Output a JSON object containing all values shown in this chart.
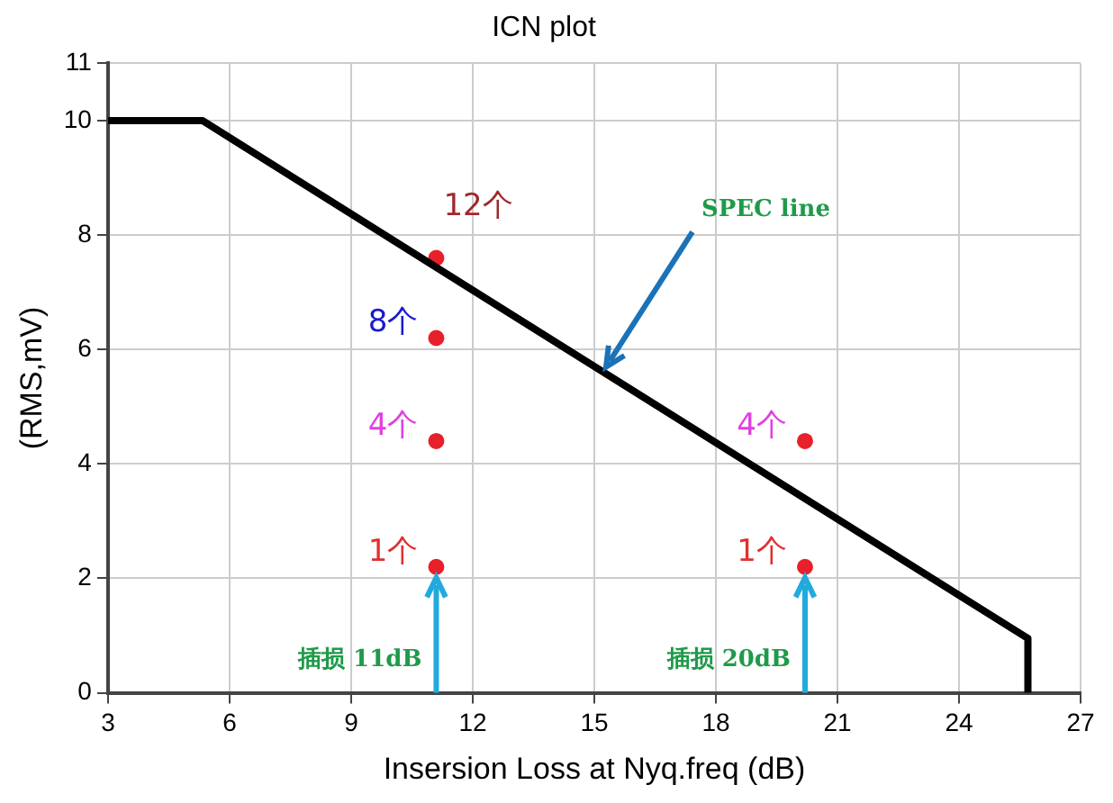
{
  "chart_data": {
    "type": "line",
    "title": "ICN plot",
    "xlabel": "Insersion Loss at Nyq.freq (dB)",
    "ylabel": "(RMS,mV)",
    "xlim": [
      3,
      27
    ],
    "xticks": [
      3,
      6,
      9,
      12,
      15,
      18,
      21,
      24,
      27
    ],
    "ylim": [
      0,
      11
    ],
    "yticks": [
      0,
      2,
      4,
      6,
      8,
      10,
      11
    ],
    "grid": true,
    "legend": false,
    "series": [
      {
        "color": "#000000",
        "x": [
          3,
          5.33,
          25.7,
          25.7
        ],
        "values": [
          10,
          10,
          0.95,
          0
        ]
      },
      {
        "type": "scatter",
        "color": "#e8202a",
        "marker": "circle",
        "x": [
          11.1,
          11.1,
          11.1,
          11.1,
          20.2,
          20.2
        ],
        "values": [
          7.6,
          6.2,
          4.4,
          2.2,
          4.4,
          2.2
        ]
      }
    ],
    "annotations": [
      {
        "text": "SPEC line",
        "x": 15.2,
        "y": 5.6
      },
      "插损 11dB",
      "插损 20dB",
      {
        "text": "12个",
        "x": 11.1,
        "y": 7.6
      },
      {
        "text": "8个",
        "x": 11.1,
        "y": 6.2
      },
      {
        "text": "4个",
        "x": 11.1,
        "y": 4.4
      },
      {
        "text": "1个",
        "x": 11.1,
        "y": 2.2
      },
      {
        "text": "4个",
        "x": 20.2,
        "y": 4.4
      },
      {
        "text": "1个",
        "x": 20.2,
        "y": 2.2
      }
    ]
  }
}
